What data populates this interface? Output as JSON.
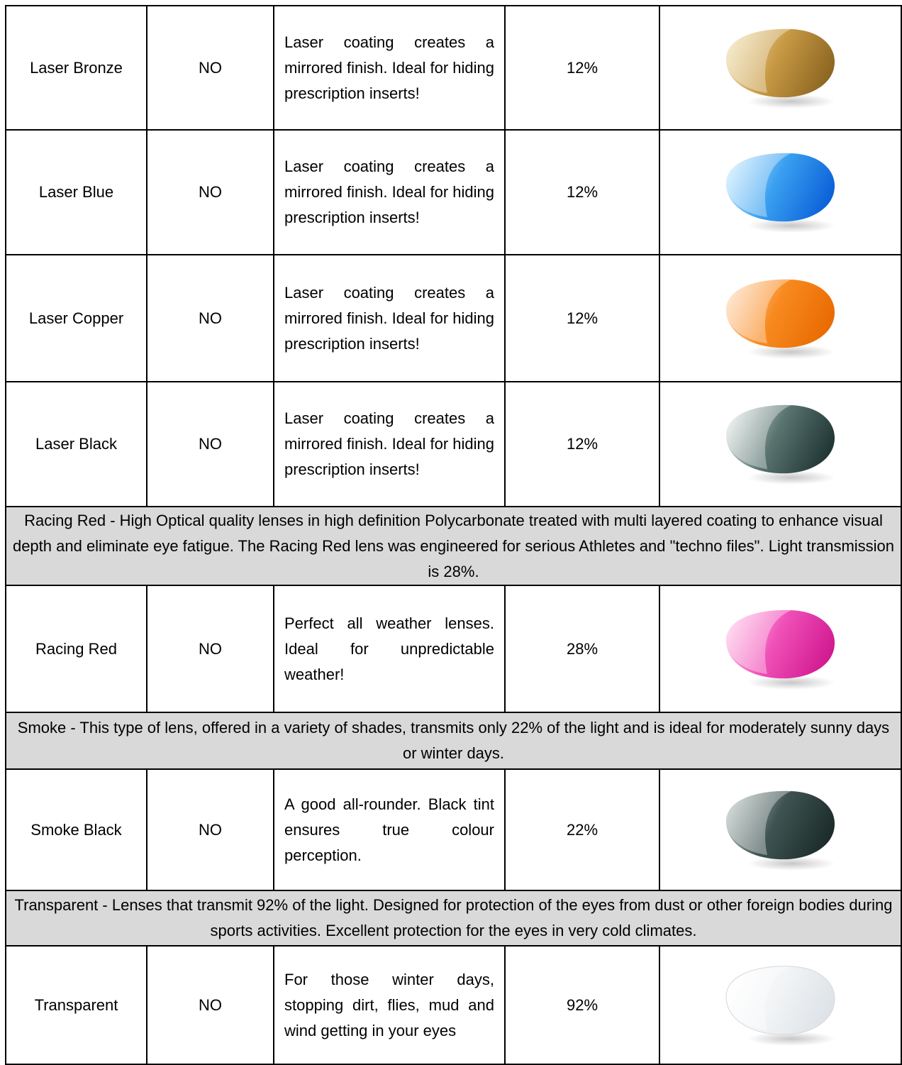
{
  "table": {
    "rows": [
      {
        "cells": [
          "Laser Bronze",
          "NO",
          "Laser coating creates a mirrored finish. Ideal for hiding prescription inserts!",
          "12%"
        ]
      },
      {
        "cells": [
          "Laser Blue",
          "NO",
          "Laser coating creates a mirrored finish. Ideal for hiding prescription inserts!",
          "12%"
        ]
      },
      {
        "cells": [
          "Laser Copper",
          "NO",
          "Laser coating creates a mirrored finish. Ideal for hiding prescription inserts!",
          "12%"
        ]
      },
      {
        "cells": [
          "Laser Black",
          "NO",
          "Laser coating creates a mirrored finish. Ideal for hiding prescription inserts!",
          "12%"
        ]
      },
      {
        "section": "Racing Red - High Optical quality lenses in high definition Polycarbonate treated with multi layered coating to enhance visual depth and eliminate eye fatigue. The Racing Red lens was engineered for serious Athletes and \"techno files\". Light transmission is 28%."
      },
      {
        "cells": [
          "Racing Red",
          "NO",
          "Perfect all weather lenses. Ideal for unpredictable weather!",
          "28%"
        ]
      },
      {
        "section": "Smoke - This type of lens, offered in a variety of shades, transmits only 22% of the light and is ideal for moderately sunny days or winter days."
      },
      {
        "cells": [
          "Smoke Black",
          "NO",
          "A good all-rounder. Black tint ensures true colour perception.",
          "22%"
        ]
      },
      {
        "section": "Transparent - Lenses that transmit 92% of the light. Designed for protection of the eyes from dust or other foreign bodies during sports activities. Excellent protection for the eyes in very cold climates."
      },
      {
        "cells": [
          "Transparent",
          "NO",
          "For those winter days, stopping dirt, flies, mud and wind getting in your eyes",
          "92%"
        ]
      }
    ]
  }
}
